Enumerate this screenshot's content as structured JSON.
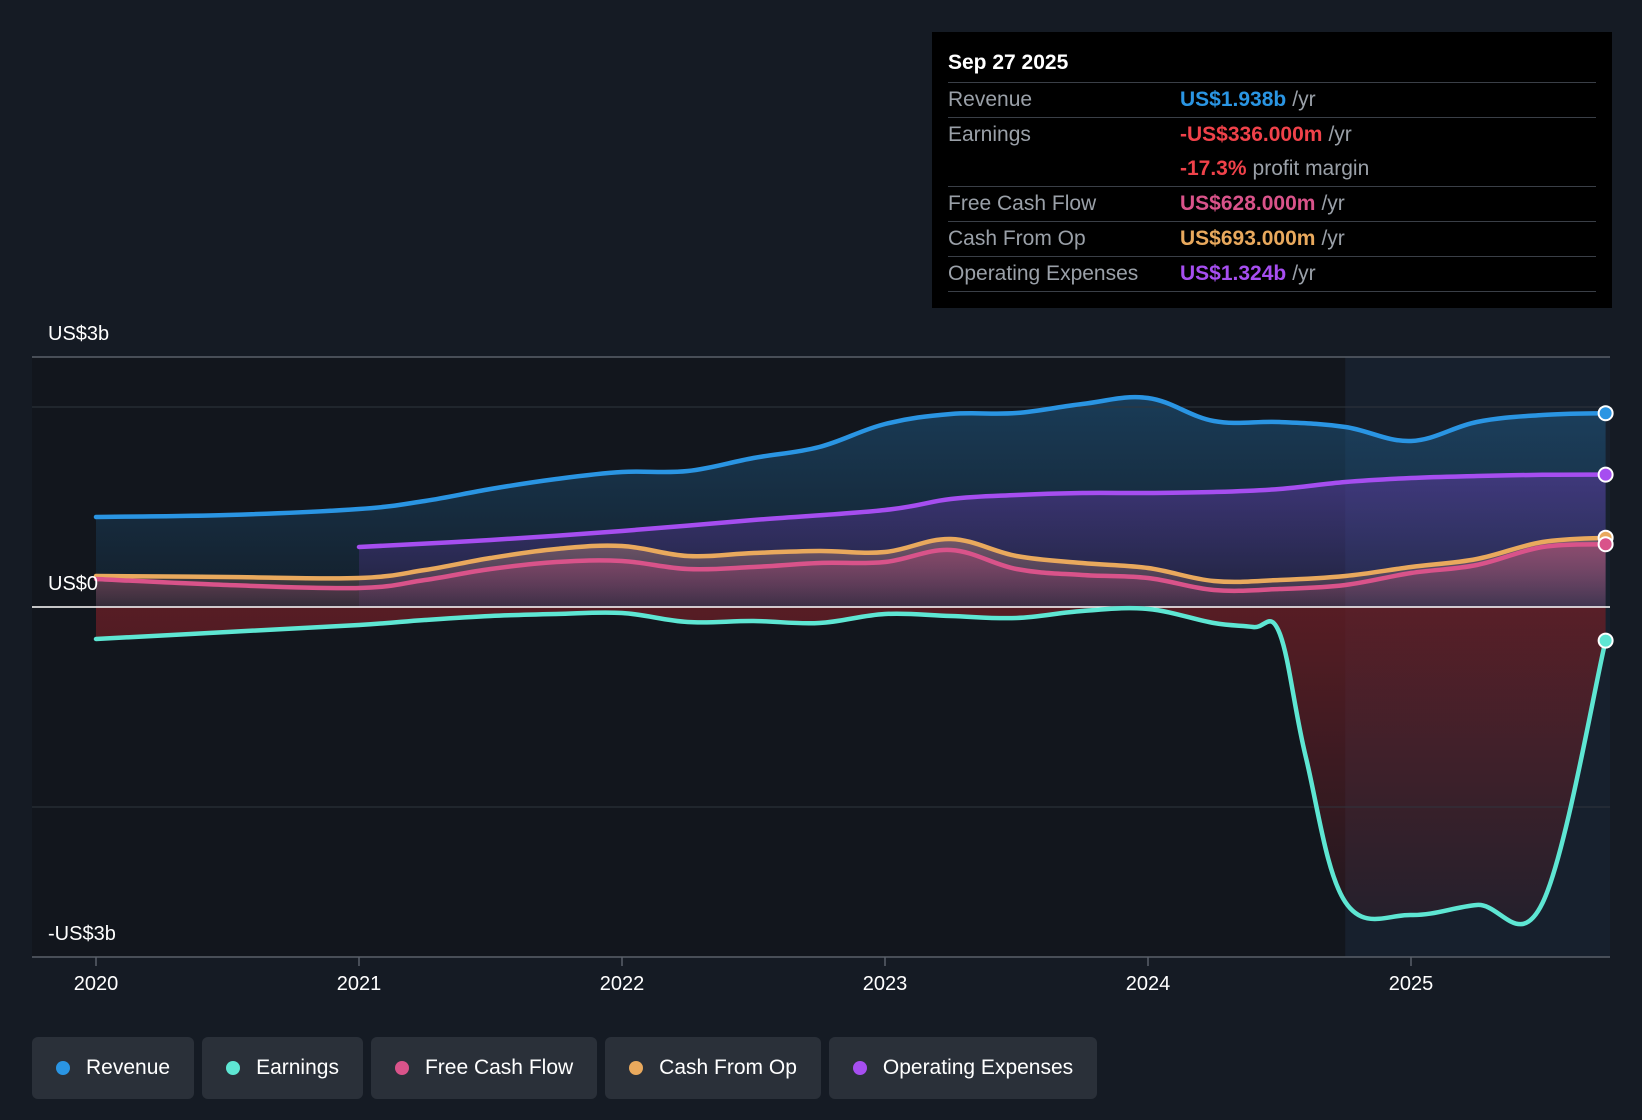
{
  "colors": {
    "revenue": "#2a95e3",
    "earnings": "#5ee6d3",
    "fcf": "#d9538a",
    "cfo": "#e9a95d",
    "opex": "#a64ef0"
  },
  "tooltip": {
    "date": "Sep 27 2025",
    "rows": [
      {
        "label": "Revenue",
        "value": "US$1.938b",
        "unit": "/yr"
      },
      {
        "label": "Earnings",
        "value": "-US$336.000m",
        "unit": "/yr"
      },
      {
        "label": "",
        "value": "-17.3%",
        "unit": "profit margin"
      },
      {
        "label": "Free Cash Flow",
        "value": "US$628.000m",
        "unit": "/yr"
      },
      {
        "label": "Cash From Op",
        "value": "US$693.000m",
        "unit": "/yr"
      },
      {
        "label": "Operating Expenses",
        "value": "US$1.324b",
        "unit": "/yr"
      }
    ]
  },
  "legend": [
    {
      "label": "Revenue"
    },
    {
      "label": "Earnings"
    },
    {
      "label": "Free Cash Flow"
    },
    {
      "label": "Cash From Op"
    },
    {
      "label": "Operating Expenses"
    }
  ],
  "chart_data": {
    "type": "line",
    "title": "",
    "xlabel": "",
    "ylabel": "",
    "y_tick_labels": [
      "US$3b",
      "US$0",
      "-US$3b"
    ],
    "x_tick_labels": [
      "2020",
      "2021",
      "2022",
      "2023",
      "2024",
      "2025"
    ],
    "xlim": [
      2020,
      2025.74
    ],
    "ylim": [
      -3.5,
      2.5
    ],
    "forecast_start": 2024.75,
    "series": [
      {
        "name": "Revenue",
        "key": "revenue",
        "x": [
          2020,
          2020.5,
          2021,
          2021.25,
          2021.5,
          2021.75,
          2022,
          2022.25,
          2022.5,
          2022.75,
          2023,
          2023.25,
          2023.5,
          2023.75,
          2024,
          2024.25,
          2024.5,
          2024.75,
          2025,
          2025.25,
          2025.5,
          2025.74
        ],
        "y": [
          0.9,
          0.92,
          0.98,
          1.06,
          1.18,
          1.28,
          1.35,
          1.36,
          1.49,
          1.6,
          1.83,
          1.93,
          1.94,
          2.03,
          2.09,
          1.86,
          1.85,
          1.8,
          1.66,
          1.85,
          1.92,
          1.938
        ]
      },
      {
        "name": "Earnings",
        "key": "earnings",
        "x": [
          2020,
          2020.5,
          2021,
          2021.25,
          2021.5,
          2021.75,
          2022,
          2022.25,
          2022.5,
          2022.75,
          2023,
          2023.25,
          2023.5,
          2023.75,
          2024,
          2024.25,
          2024.4,
          2024.5,
          2024.6,
          2024.75,
          2025,
          2025.25,
          2025.5,
          2025.74
        ],
        "y": [
          -0.32,
          -0.25,
          -0.18,
          -0.13,
          -0.09,
          -0.07,
          -0.06,
          -0.15,
          -0.14,
          -0.16,
          -0.07,
          -0.09,
          -0.11,
          -0.04,
          -0.02,
          -0.16,
          -0.2,
          -0.26,
          -1.5,
          -2.95,
          -3.08,
          -2.98,
          -2.96,
          -0.336
        ]
      },
      {
        "name": "Free Cash Flow",
        "key": "fcf",
        "x": [
          2020,
          2020.5,
          2021,
          2021.25,
          2021.5,
          2021.75,
          2022,
          2022.25,
          2022.5,
          2022.75,
          2023,
          2023.25,
          2023.5,
          2023.75,
          2024,
          2024.25,
          2024.5,
          2024.75,
          2025,
          2025.25,
          2025.5,
          2025.74
        ],
        "y": [
          0.28,
          0.22,
          0.19,
          0.27,
          0.38,
          0.45,
          0.46,
          0.38,
          0.4,
          0.44,
          0.45,
          0.57,
          0.38,
          0.32,
          0.29,
          0.17,
          0.18,
          0.22,
          0.34,
          0.42,
          0.6,
          0.628
        ]
      },
      {
        "name": "Cash From Op",
        "key": "cfo",
        "x": [
          2020,
          2020.5,
          2021,
          2021.25,
          2021.5,
          2021.75,
          2022,
          2022.25,
          2022.5,
          2022.75,
          2023,
          2023.25,
          2023.5,
          2023.75,
          2024,
          2024.25,
          2024.5,
          2024.75,
          2025,
          2025.25,
          2025.5,
          2025.74
        ],
        "y": [
          0.31,
          0.3,
          0.29,
          0.37,
          0.49,
          0.58,
          0.61,
          0.51,
          0.54,
          0.56,
          0.55,
          0.68,
          0.51,
          0.44,
          0.39,
          0.26,
          0.27,
          0.31,
          0.4,
          0.48,
          0.65,
          0.693
        ]
      },
      {
        "name": "Operating Expenses",
        "key": "opex",
        "x": [
          2021,
          2021.5,
          2022,
          2022.5,
          2023,
          2023.25,
          2023.5,
          2023.75,
          2024,
          2024.25,
          2024.5,
          2024.75,
          2025,
          2025.25,
          2025.5,
          2025.74
        ],
        "y": [
          0.6,
          0.67,
          0.76,
          0.87,
          0.97,
          1.08,
          1.12,
          1.14,
          1.14,
          1.15,
          1.18,
          1.25,
          1.29,
          1.31,
          1.322,
          1.324
        ]
      }
    ]
  }
}
